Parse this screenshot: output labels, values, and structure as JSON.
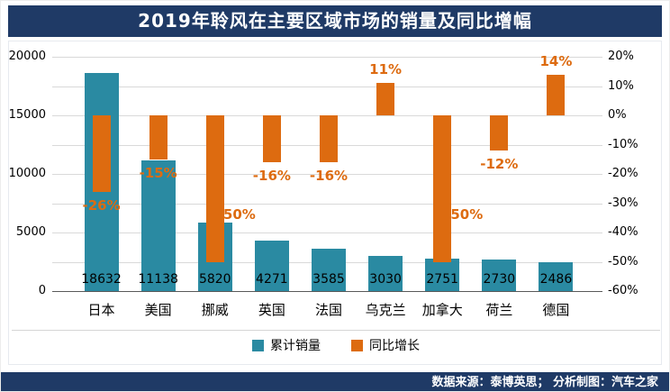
{
  "title": "2019年聆风在主要区域市场的销量及同比增幅",
  "footer": "数据来源：泰博英思； 分析制图：汽车之家",
  "colors": {
    "navy": "#1f3a66",
    "sales": "#2a8aa2",
    "growth": "#dd6b10",
    "grid": "#d9d9d9",
    "axis_line": "#595959",
    "text": "#000000"
  },
  "legend": [
    {
      "label": "累计销量",
      "color_key": "sales"
    },
    {
      "label": "同比增长",
      "color_key": "growth"
    }
  ],
  "chart_data": {
    "type": "bar",
    "title": "2019年聆风在主要区域市场的销量及同比增幅",
    "categories": [
      "日本",
      "美国",
      "挪威",
      "英国",
      "法国",
      "乌克兰",
      "加拿大",
      "荷兰",
      "德国"
    ],
    "series": [
      {
        "name": "累计销量",
        "axis": "left",
        "color_key": "sales",
        "values": [
          18632,
          11138,
          5820,
          4271,
          3585,
          3030,
          2751,
          2730,
          2486
        ]
      },
      {
        "name": "同比增长",
        "axis": "right",
        "color_key": "growth",
        "unit": "%",
        "values": [
          -26,
          -15,
          -50,
          -16,
          -16,
          11,
          -50,
          -12,
          14
        ]
      }
    ],
    "left_axis": {
      "min": 0,
      "max": 20000,
      "ticks": [
        0,
        5000,
        10000,
        15000,
        20000
      ]
    },
    "right_axis": {
      "min": -60,
      "max": 20,
      "unit": "%",
      "ticks": [
        20,
        10,
        0,
        -10,
        -20,
        -30,
        -40,
        -50,
        -60
      ]
    },
    "grid": true,
    "legend_position": "bottom"
  }
}
